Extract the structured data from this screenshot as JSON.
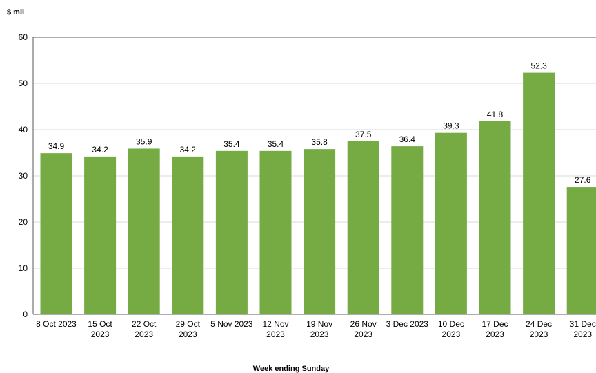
{
  "chart_data": {
    "type": "bar",
    "title": "",
    "ylabel": "$ mil",
    "xlabel": "Week ending Sunday",
    "ylim": [
      0,
      60
    ],
    "yticks": [
      0,
      10,
      20,
      30,
      40,
      50,
      60
    ],
    "grid": true,
    "legend": "none",
    "bar_color": "#76ab44",
    "categories": [
      [
        "8 Oct 2023"
      ],
      [
        "15 Oct",
        "2023"
      ],
      [
        "22 Oct",
        "2023"
      ],
      [
        "29 Oct",
        "2023"
      ],
      [
        "5 Nov 2023"
      ],
      [
        "12 Nov",
        "2023"
      ],
      [
        "19 Nov",
        "2023"
      ],
      [
        "26 Nov",
        "2023"
      ],
      [
        "3 Dec 2023"
      ],
      [
        "10 Dec",
        "2023"
      ],
      [
        "17 Dec",
        "2023"
      ],
      [
        "24 Dec",
        "2023"
      ],
      [
        "31 Dec",
        "2023"
      ]
    ],
    "values": [
      34.9,
      34.2,
      35.9,
      34.2,
      35.4,
      35.4,
      35.8,
      37.5,
      36.4,
      39.3,
      41.8,
      52.3,
      27.6
    ]
  }
}
